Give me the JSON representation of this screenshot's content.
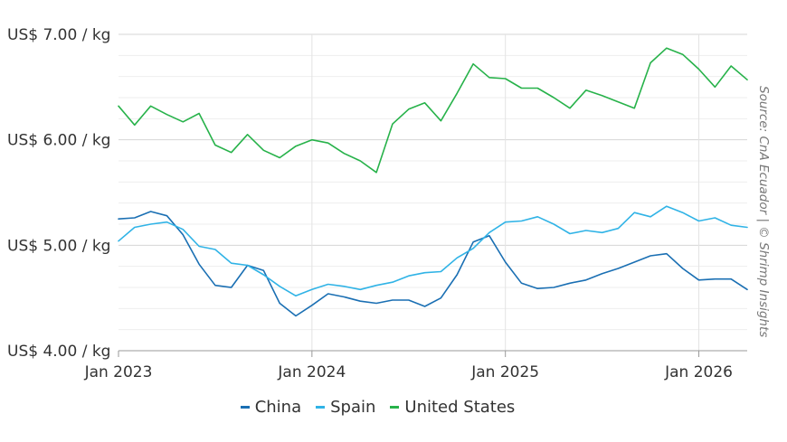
{
  "chart_data": {
    "type": "line",
    "x": [
      "Jan 2023",
      "Feb 2023",
      "Mar 2023",
      "Apr 2023",
      "May 2023",
      "Jun 2023",
      "Jul 2023",
      "Aug 2023",
      "Sep 2023",
      "Oct 2023",
      "Nov 2023",
      "Dec 2023",
      "Jan 2024",
      "Feb 2024",
      "Mar 2024",
      "Apr 2024",
      "May 2024",
      "Jun 2024",
      "Jul 2024",
      "Aug 2024",
      "Sep 2024",
      "Oct 2024",
      "Nov 2024",
      "Dec 2024",
      "Jan 2025",
      "Feb 2025",
      "Mar 2025",
      "Apr 2025",
      "May 2025",
      "Jun 2025",
      "Jul 2025",
      "Aug 2025",
      "Sep 2025",
      "Oct 2025",
      "Nov 2025",
      "Dec 2025",
      "Jan 2026",
      "Feb 2026",
      "Mar 2026",
      "Apr 2026"
    ],
    "x_ticks": [
      "Jan 2023",
      "Jan 2024",
      "Jan 2025",
      "Jan 2026"
    ],
    "y_ticks": [
      {
        "value": 4,
        "label": "US$ 4.00 / kg"
      },
      {
        "value": 5,
        "label": "US$ 5.00 / kg"
      },
      {
        "value": 6,
        "label": "US$ 6.00 / kg"
      },
      {
        "value": 7,
        "label": "US$ 7.00 / kg"
      }
    ],
    "ylim": [
      4,
      7
    ],
    "grid": true,
    "legend_position": "bottom-center",
    "series": [
      {
        "name": "China",
        "color": "#1a6fb3",
        "values": [
          5.25,
          5.26,
          5.32,
          5.28,
          5.1,
          4.82,
          4.62,
          4.6,
          4.81,
          4.76,
          4.45,
          4.33,
          4.43,
          4.54,
          4.51,
          4.47,
          4.45,
          4.48,
          4.48,
          4.42,
          4.5,
          4.72,
          5.03,
          5.09,
          4.84,
          4.64,
          4.59,
          4.6,
          4.64,
          4.67,
          4.73,
          4.78,
          4.84,
          4.9,
          4.92,
          4.78,
          4.67,
          4.68,
          4.68,
          4.58
        ]
      },
      {
        "name": "Spain",
        "color": "#30b3e6",
        "values": [
          5.04,
          5.17,
          5.2,
          5.22,
          5.15,
          4.99,
          4.96,
          4.83,
          4.81,
          4.72,
          4.61,
          4.52,
          4.58,
          4.63,
          4.61,
          4.58,
          4.62,
          4.65,
          4.71,
          4.74,
          4.75,
          4.88,
          4.97,
          5.12,
          5.22,
          5.23,
          5.27,
          5.2,
          5.11,
          5.14,
          5.12,
          5.16,
          5.31,
          5.27,
          5.37,
          5.31,
          5.23,
          5.26,
          5.19,
          5.17
        ]
      },
      {
        "name": "United States",
        "color": "#27b24a",
        "values": [
          6.32,
          6.14,
          6.32,
          6.24,
          6.17,
          6.25,
          5.95,
          5.88,
          6.05,
          5.9,
          5.83,
          5.94,
          6.0,
          5.97,
          5.87,
          5.8,
          5.69,
          6.15,
          6.29,
          6.35,
          6.18,
          6.44,
          6.72,
          6.59,
          6.58,
          6.49,
          6.49,
          6.4,
          6.3,
          6.47,
          6.42,
          6.36,
          6.3,
          6.73,
          6.87,
          6.81,
          6.67,
          6.5,
          6.7,
          6.57
        ]
      }
    ],
    "source": "Source: CnA Ecuador | © Shrimp Insights"
  }
}
